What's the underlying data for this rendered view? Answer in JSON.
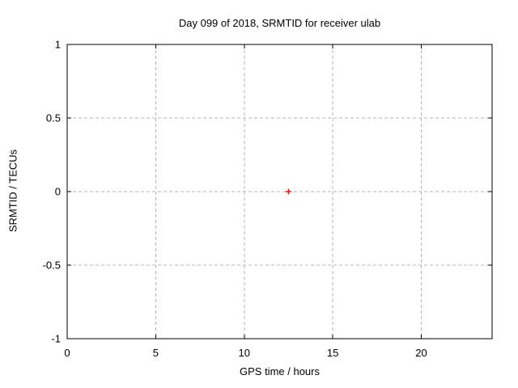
{
  "page": {
    "background": "#ffffff"
  },
  "chart_data": {
    "type": "scatter",
    "title": "Day 099 of 2018, SRMTID for receiver ulab",
    "xlabel": "GPS time / hours",
    "ylabel": "SRMTID / TECUs",
    "xlim": [
      0,
      24
    ],
    "ylim": [
      -1,
      1
    ],
    "xticks": [
      0,
      5,
      10,
      15,
      20
    ],
    "xtick_labels": [
      "0",
      "5",
      "10",
      "15",
      "20"
    ],
    "yticks": [
      -1,
      -0.5,
      0,
      0.5,
      1
    ],
    "ytick_labels": [
      "-1",
      "-0.5",
      "0",
      "0.5",
      "1"
    ],
    "grid": true,
    "legend": "none",
    "series": [
      {
        "name": "SRMTID",
        "marker": "plus",
        "color": "#ff0000",
        "points": [
          {
            "x": 12.5,
            "y": 0
          }
        ]
      }
    ],
    "colors": {
      "grid": "#b4b4b4",
      "axis": "#000000",
      "text": "#000000",
      "marker": "#ff0000"
    }
  }
}
